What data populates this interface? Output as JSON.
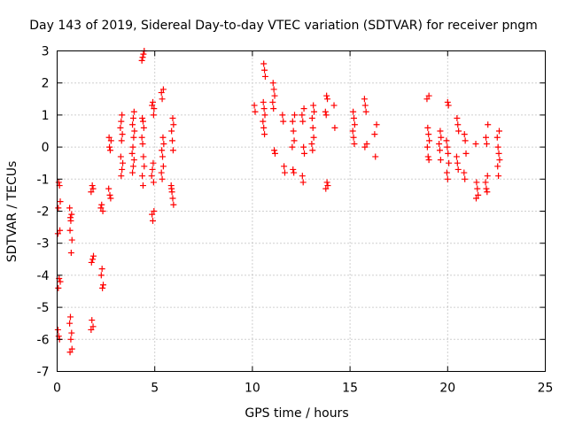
{
  "chart_data": {
    "type": "scatter",
    "title": "Day 143 of 2019, Sidereal Day-to-day VTEC variation (SDTVAR) for receiver pngm",
    "xlabel": "GPS time / hours",
    "ylabel": "SDTVAR / TECUs",
    "xlim": [
      0,
      25
    ],
    "ylim": [
      -7,
      3
    ],
    "xticks": [
      0,
      5,
      10,
      15,
      20,
      25
    ],
    "yticks": [
      -7,
      -6,
      -5,
      -4,
      -3,
      -2,
      -1,
      0,
      1,
      2,
      3
    ],
    "xtick_labels": [
      "0",
      "5",
      "10",
      "15",
      "20",
      "25"
    ],
    "ytick_labels": [
      "-7",
      "-6",
      "-5",
      "-4",
      "-3",
      "-2",
      "-1",
      "0",
      "1",
      "2",
      "3"
    ],
    "grid": true,
    "marker": "+",
    "color": "#ff0000",
    "clusters": [
      {
        "x": 0.1,
        "y": [
          -5.7,
          -5.9,
          -6.0,
          -4.2,
          -4.4,
          -4.1,
          -2.6,
          -2.7,
          -1.1,
          -1.2,
          -1.7,
          -1.9
        ]
      },
      {
        "x": 0.7,
        "y": [
          -6.3,
          -6.4,
          -6.0,
          -5.8,
          -5.5,
          -5.3,
          -3.3,
          -2.9,
          -2.6,
          -2.3,
          -2.1,
          -1.9,
          -2.2
        ]
      },
      {
        "x": 1.8,
        "y": [
          -5.6,
          -5.7,
          -5.4,
          -3.5,
          -3.4,
          -3.6,
          -1.2,
          -1.3,
          -1.4
        ]
      },
      {
        "x": 2.3,
        "y": [
          -4.4,
          -4.3,
          -4.0,
          -3.8,
          -2.0,
          -1.9,
          -1.8
        ]
      },
      {
        "x": 2.7,
        "y": [
          -1.5,
          -1.6,
          -1.3,
          0.0,
          -0.1,
          0.2,
          0.3
        ]
      },
      {
        "x": 3.3,
        "y": [
          -0.9,
          -0.7,
          -0.5,
          -0.3,
          0.2,
          0.4,
          0.6,
          0.8,
          1.0
        ]
      },
      {
        "x": 3.9,
        "y": [
          -0.8,
          -0.6,
          -0.4,
          -0.2,
          0.0,
          0.3,
          0.5,
          0.7,
          0.9,
          1.1
        ]
      },
      {
        "x": 4.4,
        "y": [
          2.7,
          2.8,
          2.9,
          3.0,
          0.9,
          0.8,
          0.6,
          0.3,
          0.1,
          -0.3,
          -0.6,
          -0.9,
          -1.2
        ]
      },
      {
        "x": 4.9,
        "y": [
          -2.0,
          -2.1,
          -2.3,
          -1.1,
          -0.9,
          -0.7,
          -0.5,
          1.2,
          1.3,
          1.4,
          1.0
        ]
      },
      {
        "x": 5.4,
        "y": [
          1.8,
          1.7,
          1.5,
          0.3,
          0.1,
          -0.1,
          -0.3,
          -0.6,
          -0.8,
          -1.0
        ]
      },
      {
        "x": 5.9,
        "y": [
          0.9,
          0.7,
          0.5,
          0.2,
          -0.1,
          -1.2,
          -1.4,
          -1.6,
          -1.8,
          -1.3
        ]
      },
      {
        "x": 10.1,
        "y": [
          1.3,
          1.1
        ]
      },
      {
        "x": 10.6,
        "y": [
          2.6,
          2.4,
          2.2,
          1.4,
          1.2,
          1.0,
          0.8,
          0.6,
          0.4
        ]
      },
      {
        "x": 11.1,
        "y": [
          2.0,
          1.8,
          1.6,
          1.4,
          1.2,
          -0.1,
          -0.2
        ]
      },
      {
        "x": 11.6,
        "y": [
          1.0,
          0.8,
          -0.6,
          -0.8
        ]
      },
      {
        "x": 12.1,
        "y": [
          1.0,
          0.8,
          0.5,
          0.2,
          0.0,
          -0.7,
          -0.8
        ]
      },
      {
        "x": 12.6,
        "y": [
          1.2,
          1.0,
          0.8,
          0.0,
          -0.2,
          -0.9,
          -1.1
        ]
      },
      {
        "x": 13.1,
        "y": [
          1.3,
          1.1,
          0.9,
          0.6,
          0.3,
          0.1,
          -0.1
        ]
      },
      {
        "x": 13.8,
        "y": [
          1.6,
          1.5,
          1.1,
          1.0,
          -1.1,
          -1.2,
          -1.3
        ]
      },
      {
        "x": 14.2,
        "y": [
          1.3,
          0.6
        ]
      },
      {
        "x": 15.2,
        "y": [
          1.1,
          0.9,
          0.7,
          0.5,
          0.3,
          0.1
        ]
      },
      {
        "x": 15.8,
        "y": [
          1.5,
          1.3,
          1.1,
          0.1,
          0.0
        ]
      },
      {
        "x": 16.3,
        "y": [
          0.7,
          0.4,
          -0.3
        ]
      },
      {
        "x": 19.0,
        "y": [
          1.6,
          1.5,
          0.6,
          0.4,
          0.2,
          0.0,
          -0.3,
          -0.4
        ]
      },
      {
        "x": 19.6,
        "y": [
          0.5,
          0.3,
          0.1,
          -0.1,
          -0.4
        ]
      },
      {
        "x": 20.0,
        "y": [
          1.4,
          1.3,
          0.2,
          0.0,
          -0.2,
          -0.5,
          -0.8,
          -1.0
        ]
      },
      {
        "x": 20.5,
        "y": [
          0.9,
          0.7,
          0.5,
          -0.3,
          -0.5,
          -0.7
        ]
      },
      {
        "x": 20.9,
        "y": [
          0.4,
          0.2,
          -0.2,
          -0.8,
          -1.0
        ]
      },
      {
        "x": 21.5,
        "y": [
          0.1,
          -1.1,
          -1.3,
          -1.5,
          -1.6
        ]
      },
      {
        "x": 22.0,
        "y": [
          0.7,
          0.3,
          0.1,
          -0.9,
          -1.1,
          -1.3,
          -1.4
        ]
      },
      {
        "x": 22.6,
        "y": [
          0.5,
          0.3,
          0.0,
          -0.2,
          -0.4,
          -0.6,
          -0.9
        ]
      }
    ]
  }
}
